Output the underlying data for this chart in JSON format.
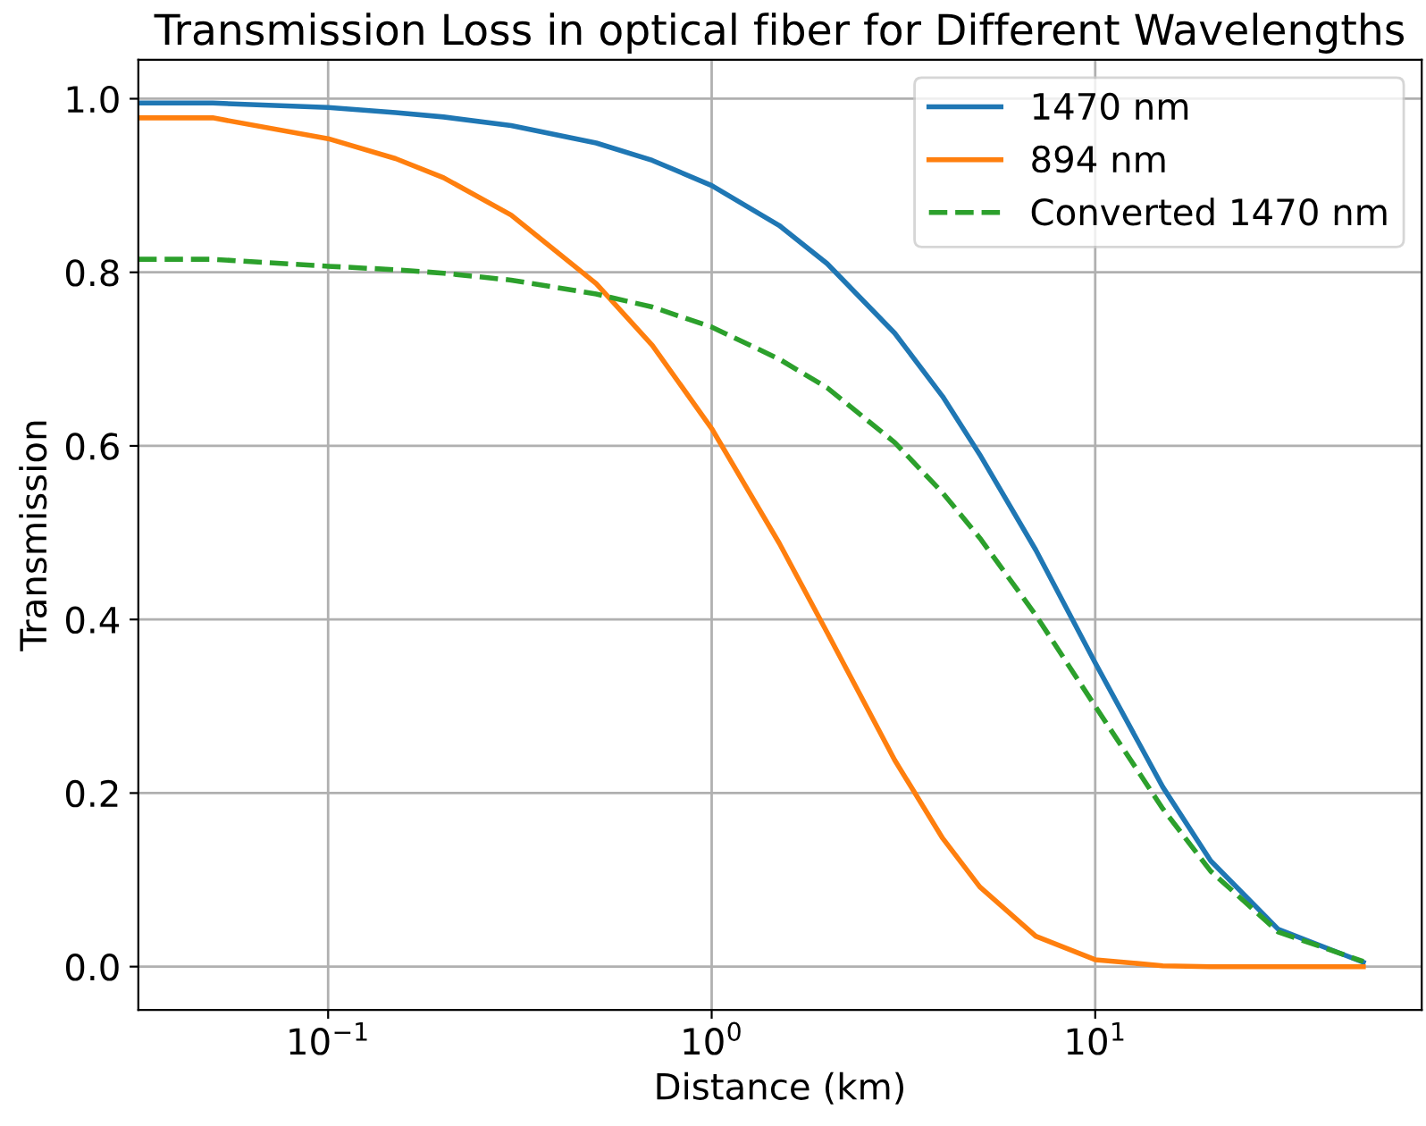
{
  "chart_data": {
    "type": "line",
    "title": "Transmission Loss in optical fiber for Different Wavelengths",
    "xlabel": "Distance (km)",
    "ylabel": "Transmission",
    "x": [
      0.032,
      0.05,
      0.1,
      0.15,
      0.2,
      0.3,
      0.5,
      0.7,
      1,
      1.5,
      2,
      3,
      4,
      5,
      7,
      10,
      15,
      20,
      30,
      50
    ],
    "series": [
      {
        "name": "1470 nm",
        "color": "#1f77b4",
        "line_style": "solid",
        "values": [
          0.995,
          0.995,
          0.99,
          0.984,
          0.979,
          0.969,
          0.949,
          0.929,
          0.9,
          0.854,
          0.81,
          0.73,
          0.657,
          0.59,
          0.48,
          0.35,
          0.207,
          0.122,
          0.043,
          0.005
        ]
      },
      {
        "name": "894 nm",
        "color": "#ff7f0e",
        "line_style": "solid",
        "values": [
          0.978,
          0.978,
          0.954,
          0.931,
          0.909,
          0.866,
          0.787,
          0.716,
          0.62,
          0.488,
          0.385,
          0.238,
          0.148,
          0.092,
          0.035,
          0.008,
          0.001,
          0.0,
          0.0,
          0.0
        ]
      },
      {
        "name": "Converted 1470 nm",
        "color": "#2ca02c",
        "line_style": "dashed",
        "values": [
          0.815,
          0.815,
          0.807,
          0.803,
          0.799,
          0.791,
          0.775,
          0.76,
          0.737,
          0.7,
          0.667,
          0.604,
          0.546,
          0.494,
          0.405,
          0.3,
          0.182,
          0.11,
          0.04,
          0.006
        ]
      }
    ],
    "log": "x",
    "xlim": [
      0.032,
      71
    ],
    "xticks": [
      {
        "value": 0.1,
        "label": "10$^{−1}$"
      },
      {
        "value": 1,
        "label": "10$^{0}$"
      },
      {
        "value": 10,
        "label": "10$^{1}$"
      }
    ],
    "ylim": [
      -0.05,
      1.045
    ],
    "yticks": [
      {
        "value": 0,
        "label": "0.0"
      },
      {
        "value": 0.2,
        "label": "0.2"
      },
      {
        "value": 0.4,
        "label": "0.4"
      },
      {
        "value": 0.6,
        "label": "0.6"
      },
      {
        "value": 0.8,
        "label": "0.8"
      },
      {
        "value": 1,
        "label": "1.0"
      }
    ],
    "grid": true,
    "legend": "top right"
  }
}
